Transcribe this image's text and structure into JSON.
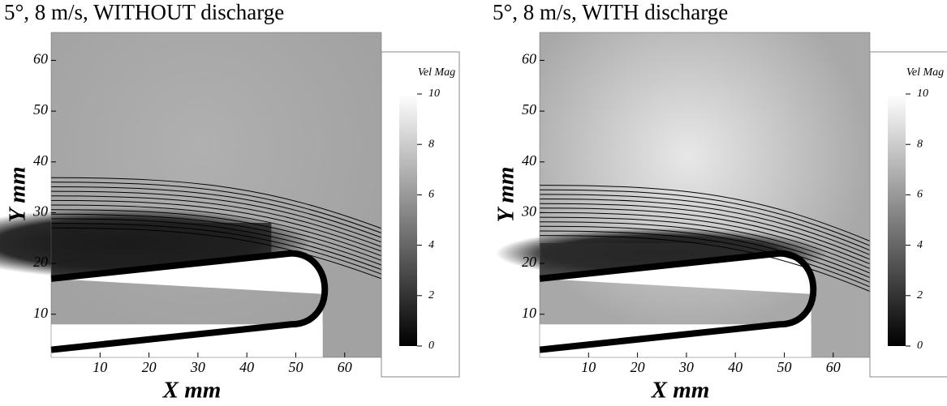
{
  "chart_data": [
    {
      "type": "contour",
      "title": "5°, 8 m/s, WITHOUT discharge",
      "xlabel": "X mm",
      "ylabel": "Y mm",
      "xlim": [
        0,
        67.5
      ],
      "ylim": [
        1.5,
        65.5
      ],
      "xticks": [
        10,
        20,
        30,
        40,
        50,
        60
      ],
      "yticks": [
        10,
        20,
        30,
        40,
        50,
        60
      ],
      "colorbar": {
        "label": "Vel Mag",
        "lim": [
          0,
          10
        ],
        "ticks": [
          0,
          2,
          4,
          6,
          8,
          10
        ]
      }
    },
    {
      "type": "contour",
      "title": "5°, 8 m/s, WITH discharge",
      "xlabel": "X mm",
      "ylabel": "Y mm",
      "xlim": [
        0,
        67.5
      ],
      "ylim": [
        1.5,
        65.5
      ],
      "xticks": [
        10,
        20,
        30,
        40,
        50,
        60
      ],
      "yticks": [
        10,
        20,
        30,
        40,
        50,
        60
      ],
      "colorbar": {
        "label": "Vel Mag",
        "lim": [
          0,
          10
        ],
        "ticks": [
          0,
          2,
          4,
          6,
          8,
          10
        ]
      }
    }
  ]
}
